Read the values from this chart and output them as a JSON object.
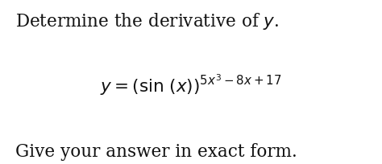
{
  "background_color": "#ffffff",
  "text_color": "#111111",
  "line1": "Determine the derivative of $y$.",
  "line2": "$y = (\\sin\\,(x))^{5x^3-8x+17}$",
  "line3": "Give your answer in exact form.",
  "fontsize": 15.5,
  "fig_width": 4.74,
  "fig_height": 2.05,
  "dpi": 100
}
